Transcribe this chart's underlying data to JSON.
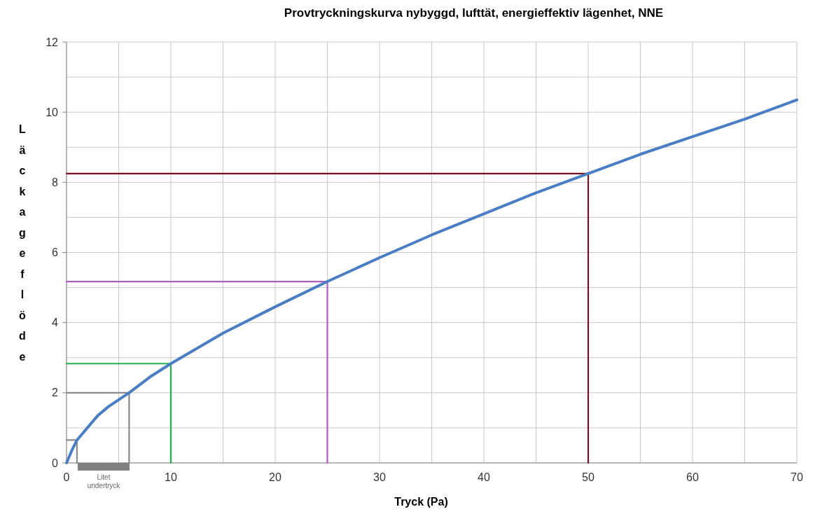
{
  "chart_data": {
    "type": "line",
    "title": "Provtryckningskurva nybyggd, lufttät, energieffektiv lägenhet, NNE",
    "xlabel": "Tryck (Pa)",
    "ylabel": "Läckageflöde",
    "xlim": [
      0,
      70
    ],
    "ylim": [
      0,
      12
    ],
    "xticks": [
      0,
      {
        "value": 5,
        "label": null
      },
      10,
      {
        "value": 15,
        "label": null
      },
      20,
      {
        "value": 25,
        "label": null
      },
      30,
      {
        "value": 35,
        "label": null
      },
      40,
      {
        "value": 45,
        "label": null
      },
      50,
      {
        "value": 55,
        "label": null
      },
      60,
      {
        "value": 65,
        "label": null
      },
      70
    ],
    "yticks": [
      0,
      {
        "value": 1,
        "label": null
      },
      2,
      {
        "value": 3,
        "label": null
      },
      4,
      {
        "value": 5,
        "label": null
      },
      6,
      {
        "value": 7,
        "label": null
      },
      8,
      {
        "value": 9,
        "label": null
      },
      10,
      {
        "value": 11,
        "label": null
      },
      12
    ],
    "grid": true,
    "annotations": [
      "Litet undertryck"
    ],
    "series": [
      {
        "color": "#8b8b8b",
        "x": [
          0,
          1,
          1
        ],
        "values": [
          0.65,
          0.65,
          0
        ]
      },
      {
        "color": "#8b8b8b",
        "x": [
          0,
          6,
          6
        ],
        "values": [
          2,
          2,
          0
        ]
      },
      {
        "color": "#22b14c",
        "x": [
          0,
          10,
          10
        ],
        "values": [
          2.83,
          2.83,
          0
        ]
      },
      {
        "color": "#b05cc6",
        "x": [
          0,
          25,
          25
        ],
        "values": [
          5.17,
          5.17,
          0
        ]
      },
      {
        "color": "#7b1020",
        "x": [
          0,
          50,
          50
        ],
        "values": [
          8.25,
          8.25,
          0
        ]
      },
      {
        "color": "#4a7ec4",
        "x": [
          0,
          0.5,
          1,
          2,
          3,
          4,
          6,
          8,
          10,
          15,
          20,
          25,
          30,
          35,
          40,
          45,
          50,
          55,
          60,
          65,
          70
        ],
        "values": [
          0,
          0.35,
          0.65,
          1.0,
          1.35,
          1.6,
          2.0,
          2.45,
          2.83,
          3.7,
          4.45,
          5.17,
          5.85,
          6.5,
          7.1,
          7.7,
          8.25,
          8.8,
          9.3,
          9.8,
          10.35
        ]
      }
    ]
  }
}
